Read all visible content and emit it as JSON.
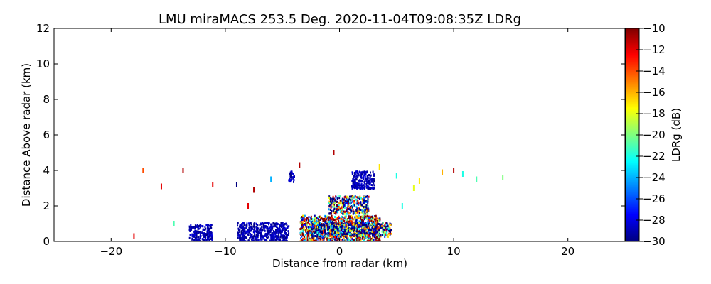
{
  "chart_data": {
    "type": "heatmap",
    "title": "LMU miraMACS 253.5 Deg. 2020-11-04T09:08:35Z  LDRg",
    "xlabel": "Distance from radar (km)",
    "ylabel": "Distance Above radar  (km)",
    "xlim": [
      -25,
      25
    ],
    "ylim": [
      0,
      12
    ],
    "xticks": [
      -20,
      -10,
      0,
      10,
      20
    ],
    "xtick_labels": [
      "−20",
      "−10",
      "0",
      "10",
      "20"
    ],
    "yticks": [
      0,
      2,
      4,
      6,
      8,
      10,
      12
    ],
    "ytick_labels": [
      "0",
      "2",
      "4",
      "6",
      "8",
      "10",
      "12"
    ],
    "grid": false,
    "colorbar": {
      "label": "LDRg (dB)",
      "colormap": "jet",
      "range": [
        -30,
        -10
      ],
      "ticks": [
        -10,
        -12,
        -14,
        -16,
        -18,
        -20,
        -22,
        -24,
        -26,
        -28,
        -30
      ],
      "tick_labels": [
        "−10",
        "−12",
        "−14",
        "−16",
        "−18",
        "−20",
        "−22",
        "−24",
        "−26",
        "−28",
        "−30"
      ],
      "colors": [
        "#00007f",
        "#0000ff",
        "#007fff",
        "#00ffff",
        "#7fff7f",
        "#ffff00",
        "#ff7f00",
        "#ff0000",
        "#7f0000"
      ]
    },
    "echo_regions": [
      {
        "name": "low-level dark blue patch",
        "x": [
          -13.2,
          -11.2
        ],
        "y": [
          0.0,
          1.0
        ],
        "ldr": -30
      },
      {
        "name": "low-level dark blue band",
        "x": [
          -9.0,
          -4.5
        ],
        "y": [
          0.0,
          1.1
        ],
        "ldr": -30
      },
      {
        "name": "near-radar mixed core",
        "x": [
          -3.5,
          3.5
        ],
        "y": [
          0.0,
          1.5
        ],
        "ldr": -16
      },
      {
        "name": "near-radar low blue band",
        "x": [
          -2.5,
          4.5
        ],
        "y": [
          0.3,
          1.1
        ],
        "ldr": -27
      },
      {
        "name": "upper blue patch",
        "x": [
          1.0,
          3.0
        ],
        "y": [
          3.0,
          4.0
        ],
        "ldr": -30
      },
      {
        "name": "upper blue patch left",
        "x": [
          -4.5,
          -4.0
        ],
        "y": [
          3.4,
          4.0
        ],
        "ldr": -30
      },
      {
        "name": "mid-level mixed echo",
        "x": [
          -1.0,
          2.5
        ],
        "y": [
          1.6,
          2.6
        ],
        "ldr": -24
      }
    ],
    "sparse_points": [
      {
        "x": -18,
        "y": 0.3,
        "ldr": -12
      },
      {
        "x": -17.2,
        "y": 4.0,
        "ldr": -14
      },
      {
        "x": -15.6,
        "y": 3.1,
        "ldr": -12
      },
      {
        "x": -13.7,
        "y": 4.0,
        "ldr": -11
      },
      {
        "x": -11.1,
        "y": 3.2,
        "ldr": -12
      },
      {
        "x": -9.0,
        "y": 3.2,
        "ldr": -30
      },
      {
        "x": -8.0,
        "y": 2.0,
        "ldr": -12
      },
      {
        "x": -14.5,
        "y": 1.0,
        "ldr": -21
      },
      {
        "x": -7.5,
        "y": 2.9,
        "ldr": -11
      },
      {
        "x": -6.0,
        "y": 3.5,
        "ldr": -24
      },
      {
        "x": -3.5,
        "y": 4.3,
        "ldr": -11
      },
      {
        "x": -0.5,
        "y": 5.0,
        "ldr": -11
      },
      {
        "x": 3.5,
        "y": 4.2,
        "ldr": -17
      },
      {
        "x": 5.0,
        "y": 3.7,
        "ldr": -22
      },
      {
        "x": 6.5,
        "y": 3.0,
        "ldr": -18
      },
      {
        "x": 7.0,
        "y": 3.4,
        "ldr": -17
      },
      {
        "x": 9.0,
        "y": 3.9,
        "ldr": -16
      },
      {
        "x": 10.0,
        "y": 4.0,
        "ldr": -11
      },
      {
        "x": 10.8,
        "y": 3.8,
        "ldr": -22
      },
      {
        "x": 12.0,
        "y": 3.5,
        "ldr": -21
      },
      {
        "x": 14.3,
        "y": 3.6,
        "ldr": -20
      },
      {
        "x": 5.5,
        "y": 2.0,
        "ldr": -22
      }
    ]
  }
}
